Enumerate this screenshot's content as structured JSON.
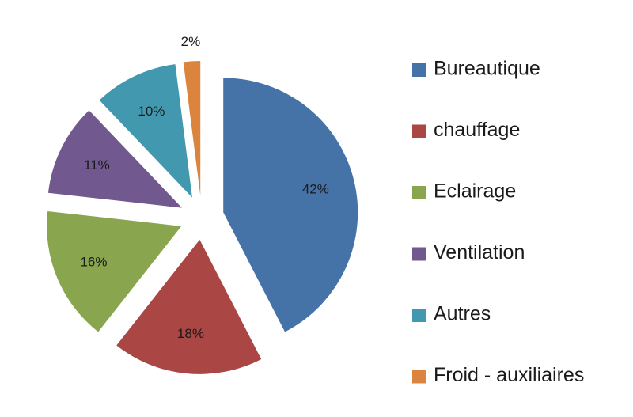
{
  "chart_data": {
    "type": "pie",
    "title": "",
    "legend_placement": "right",
    "exploded": true,
    "slices": [
      {
        "name": "Bureautique",
        "value": 42,
        "label": "42%",
        "color": "#4572A7"
      },
      {
        "name": "chauffage",
        "value": 18,
        "label": "18%",
        "color": "#AA4643"
      },
      {
        "name": "Eclairage",
        "value": 16,
        "label": "16%",
        "color": "#89A54E"
      },
      {
        "name": "Ventilation",
        "value": 11,
        "label": "11%",
        "color": "#71588F"
      },
      {
        "name": "Autres",
        "value": 10,
        "label": "10%",
        "color": "#4198AF"
      },
      {
        "name": "Froid - auxiliaires",
        "value": 2,
        "label": "2%",
        "color": "#DB843D"
      }
    ]
  }
}
